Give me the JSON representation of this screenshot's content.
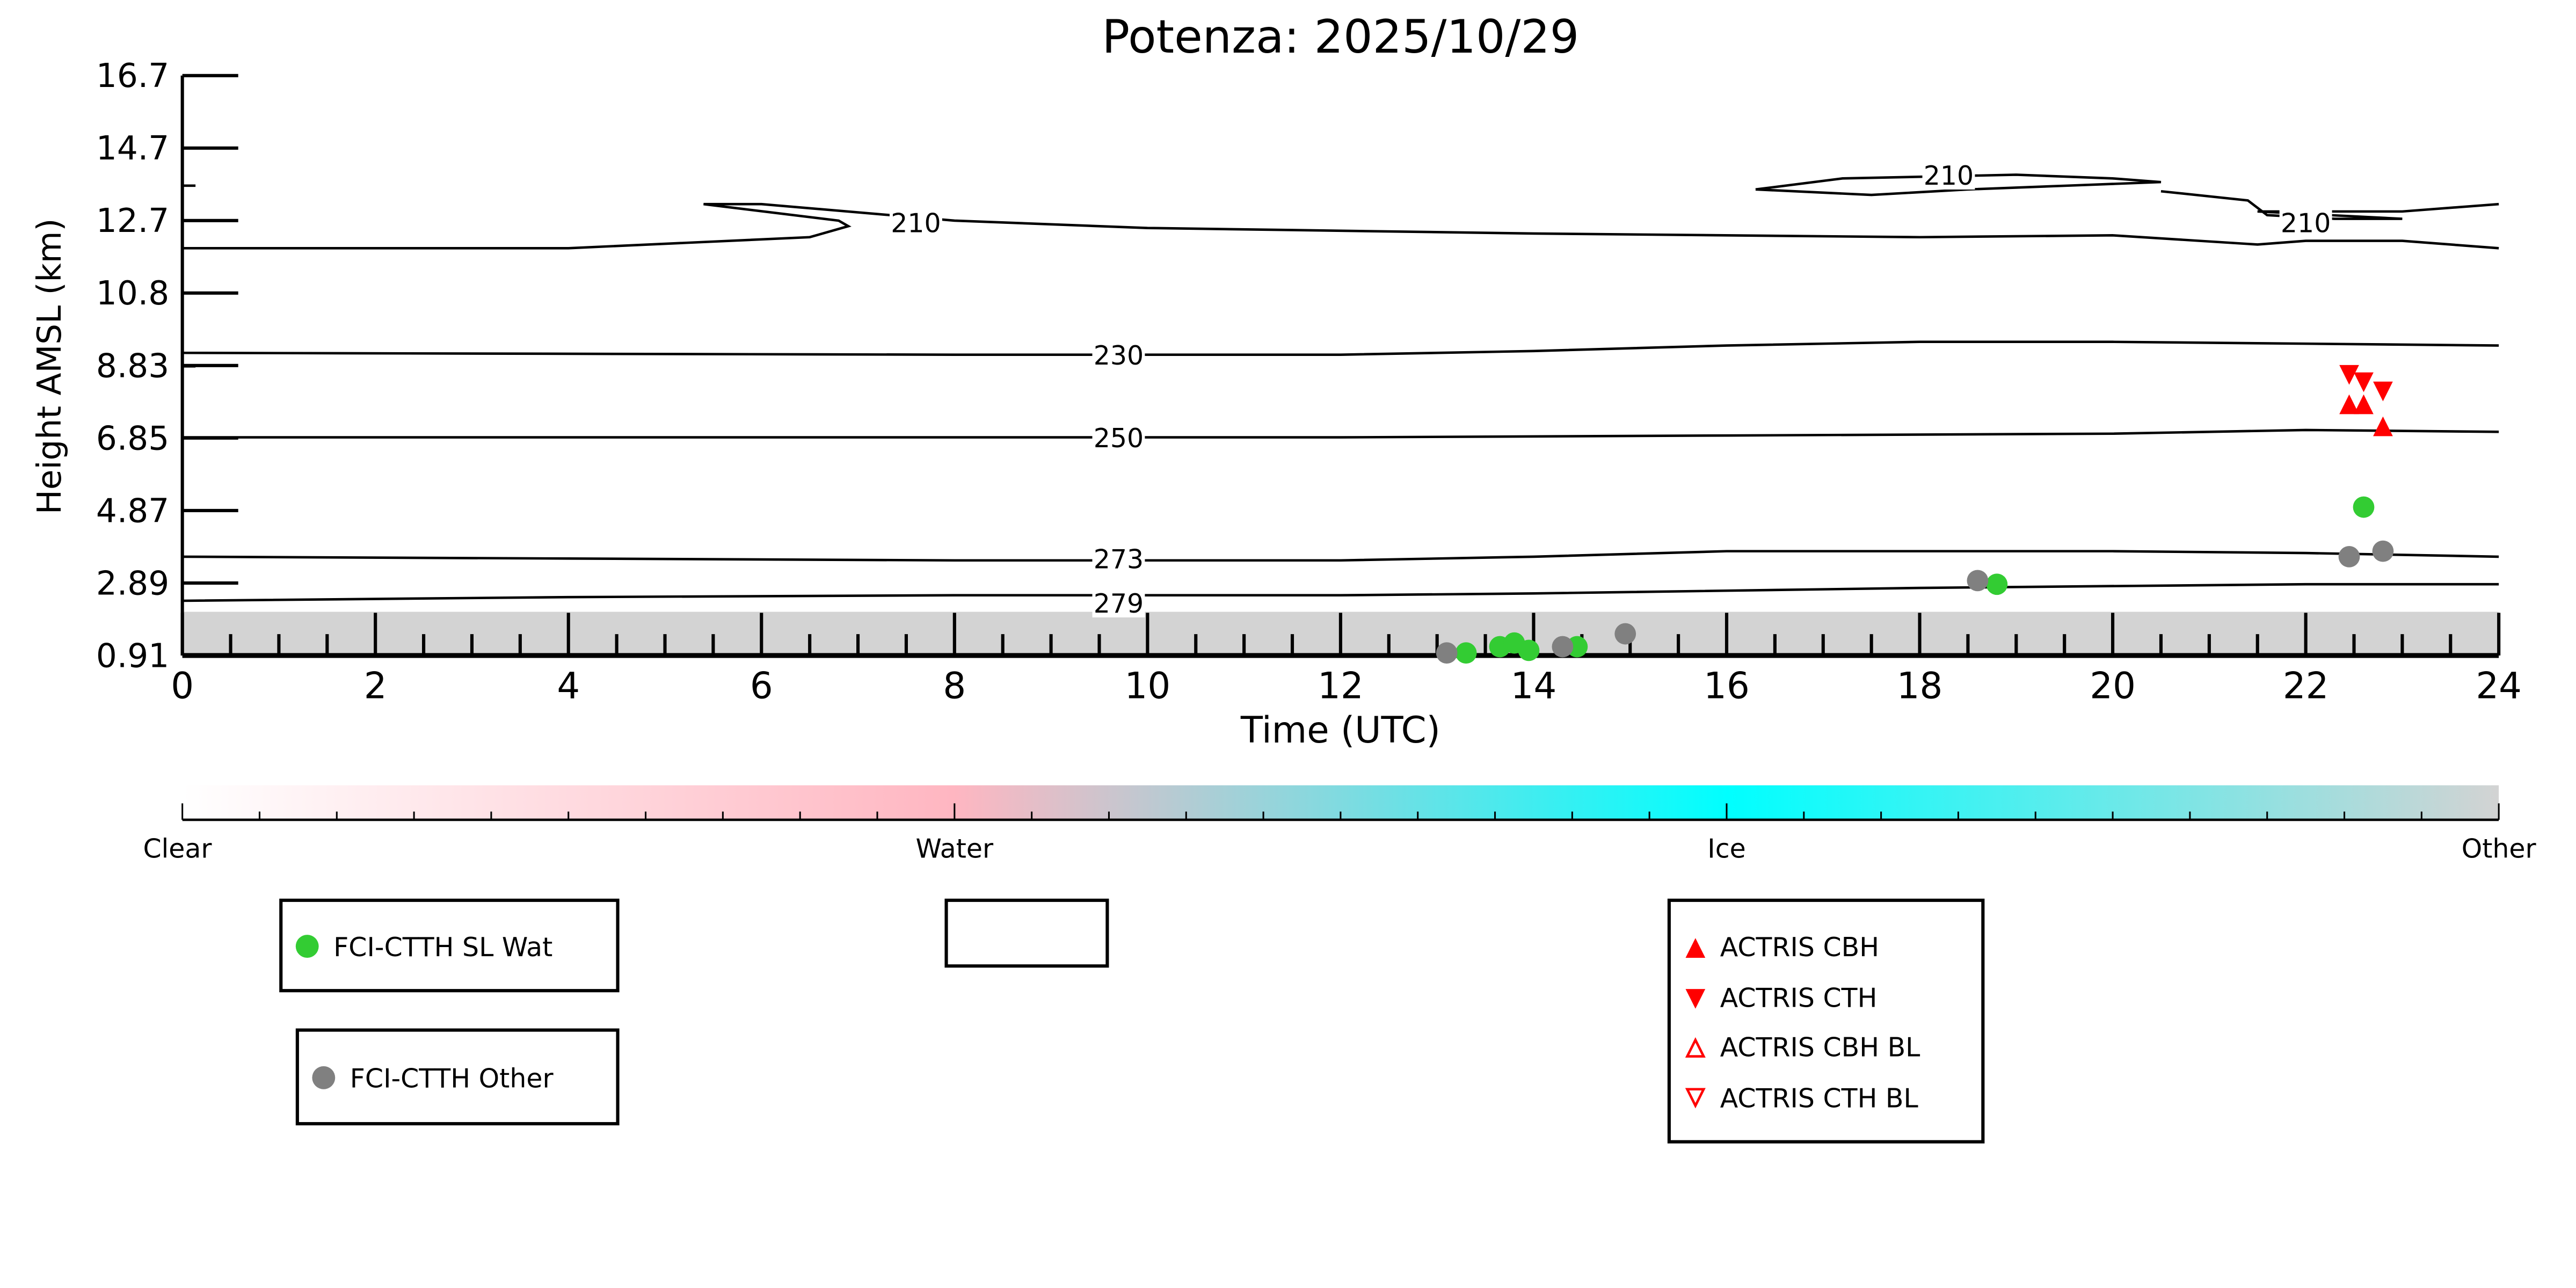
{
  "chart_data": {
    "type": "scatter",
    "title": "Potenza: 2025/10/29",
    "xlabel": "Time (UTC)",
    "ylabel": "Height AMSL (km)",
    "xlim": [
      0,
      24
    ],
    "ylim": [
      0.91,
      16.7
    ],
    "xticks": [
      "0",
      "2",
      "4",
      "6",
      "8",
      "10",
      "12",
      "14",
      "16",
      "18",
      "20",
      "22",
      "24"
    ],
    "yticks": [
      "0.91",
      "2.89",
      "4.87",
      "6.85",
      "8.83",
      "10.8",
      "12.7",
      "14.7",
      "16.7"
    ],
    "colorbar": {
      "labels": [
        "Clear",
        "Water",
        "Ice",
        "Other"
      ],
      "colors": [
        "#ffffff",
        "#ffb6c1",
        "#00ffff",
        "#d3d3d3"
      ]
    },
    "contours": [
      {
        "label": "210",
        "label_at": [
          7.6,
          12.7
        ],
        "points": [
          [
            0,
            12.0
          ],
          [
            4,
            12.0
          ],
          [
            6.5,
            12.3
          ],
          [
            6.9,
            12.6
          ],
          [
            6.8,
            12.75
          ],
          [
            5.4,
            13.2
          ],
          [
            6,
            13.2
          ],
          [
            8,
            12.75
          ],
          [
            10,
            12.55
          ],
          [
            14,
            12.4
          ],
          [
            18,
            12.3
          ],
          [
            20,
            12.35
          ],
          [
            21.5,
            12.1
          ],
          [
            22,
            12.2
          ],
          [
            23,
            12.2
          ],
          [
            24,
            12.0
          ]
        ]
      },
      {
        "label": "210",
        "label_at": [
          18.3,
          14.0
        ],
        "points": [
          [
            16.3,
            13.6
          ],
          [
            17.2,
            13.9
          ],
          [
            19,
            14.0
          ],
          [
            20,
            13.9
          ],
          [
            20.5,
            13.8
          ],
          [
            19.5,
            13.7
          ],
          [
            18.5,
            13.6
          ],
          [
            17.5,
            13.45
          ],
          [
            16.3,
            13.6
          ]
        ]
      },
      {
        "label": "210",
        "label_at": [
          22.0,
          12.7
        ],
        "points": [
          [
            20.5,
            13.55
          ],
          [
            21.4,
            13.3
          ],
          [
            21.6,
            12.9
          ],
          [
            22.3,
            12.8
          ],
          [
            23,
            12.8
          ],
          [
            21.5,
            13.0
          ],
          [
            22.2,
            13.0
          ],
          [
            23,
            13.0
          ],
          [
            24,
            13.2
          ]
        ]
      },
      {
        "label": "230",
        "label_at": [
          9.7,
          9.1
        ],
        "points": [
          [
            0,
            9.15
          ],
          [
            8,
            9.1
          ],
          [
            12,
            9.1
          ],
          [
            14,
            9.2
          ],
          [
            16,
            9.35
          ],
          [
            18,
            9.45
          ],
          [
            20,
            9.45
          ],
          [
            22,
            9.4
          ],
          [
            24,
            9.35
          ]
        ]
      },
      {
        "label": "250",
        "label_at": [
          9.7,
          6.85
        ],
        "points": [
          [
            0,
            6.85
          ],
          [
            8,
            6.85
          ],
          [
            12,
            6.85
          ],
          [
            16,
            6.9
          ],
          [
            20,
            6.95
          ],
          [
            22,
            7.05
          ],
          [
            24,
            7.0
          ]
        ]
      },
      {
        "label": "273",
        "label_at": [
          9.7,
          3.55
        ],
        "points": [
          [
            0,
            3.6
          ],
          [
            4,
            3.55
          ],
          [
            8,
            3.5
          ],
          [
            12,
            3.5
          ],
          [
            14,
            3.6
          ],
          [
            16,
            3.75
          ],
          [
            20,
            3.75
          ],
          [
            22,
            3.7
          ],
          [
            24,
            3.6
          ]
        ]
      },
      {
        "label": "279",
        "label_at": [
          9.7,
          2.35
        ],
        "points": [
          [
            0,
            2.4
          ],
          [
            4,
            2.5
          ],
          [
            8,
            2.55
          ],
          [
            12,
            2.55
          ],
          [
            14,
            2.6
          ],
          [
            18,
            2.75
          ],
          [
            22,
            2.85
          ],
          [
            24,
            2.85
          ]
        ]
      }
    ],
    "series": [
      {
        "name": "FCI-CTTH SL Wat",
        "color": "#33cc33",
        "marker": "circle",
        "points": [
          [
            13.3,
            0.98
          ],
          [
            13.65,
            1.15
          ],
          [
            13.8,
            1.25
          ],
          [
            13.95,
            1.05
          ],
          [
            14.45,
            1.15
          ],
          [
            18.8,
            2.85
          ],
          [
            22.6,
            4.95
          ]
        ]
      },
      {
        "name": "FCI-CTTH Other",
        "color": "#808080",
        "marker": "circle",
        "points": [
          [
            13.1,
            0.98
          ],
          [
            14.3,
            1.15
          ],
          [
            14.95,
            1.5
          ],
          [
            18.6,
            2.95
          ],
          [
            22.45,
            3.6
          ],
          [
            22.8,
            3.75
          ]
        ]
      },
      {
        "name": "ACTRIS CBH",
        "color": "#ff0000",
        "marker": "triangle-up",
        "points": [
          [
            22.45,
            7.75
          ],
          [
            22.6,
            7.75
          ],
          [
            22.8,
            7.15
          ]
        ]
      },
      {
        "name": "ACTRIS CTH",
        "color": "#ff0000",
        "marker": "triangle-down",
        "points": [
          [
            22.45,
            8.55
          ],
          [
            22.6,
            8.35
          ],
          [
            22.8,
            8.1
          ]
        ]
      },
      {
        "name": "ACTRIS CBH BL",
        "color": "#ff0000",
        "marker": "triangle-up-open",
        "points": []
      },
      {
        "name": "ACTRIS CTH BL",
        "color": "#ff0000",
        "marker": "triangle-down-open",
        "points": []
      }
    ],
    "other_layer_top_km": 2.1
  }
}
